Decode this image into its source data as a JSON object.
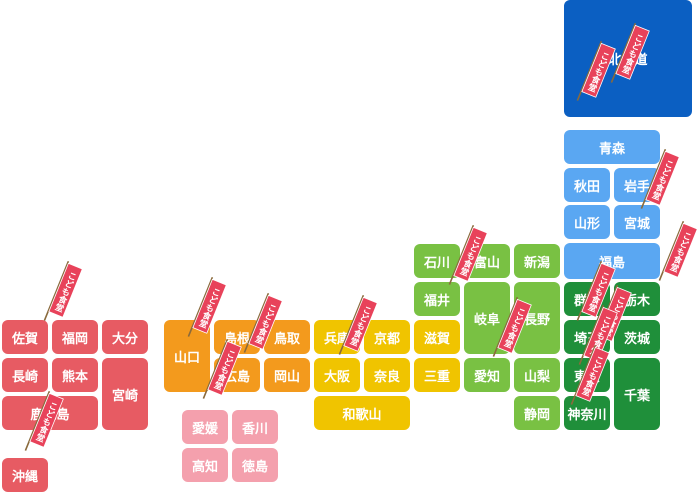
{
  "prefectures": {
    "hokkaido": "北海道",
    "aomori": "青森",
    "akita": "秋田",
    "iwate": "岩手",
    "yamagata": "山形",
    "miyagi": "宮城",
    "fukushima": "福島",
    "ishikawa": "石川",
    "toyama": "富山",
    "niigata": "新潟",
    "fukui": "福井",
    "gifu": "岐阜",
    "nagano": "長野",
    "aichi": "愛知",
    "yamanashi": "山梨",
    "shizuoka": "静岡",
    "gunma": "群馬",
    "tochigi": "栃木",
    "saitama": "埼玉",
    "ibaraki": "茨城",
    "tokyo": "東京",
    "chiba": "千葉",
    "kanagawa": "神奈川",
    "hyogo": "兵庫",
    "kyoto": "京都",
    "shiga": "滋賀",
    "osaka": "大阪",
    "nara": "奈良",
    "mie": "三重",
    "wakayama": "和歌山",
    "yamaguchi": "山口",
    "shimane": "島根",
    "tottori": "鳥取",
    "hiroshima": "広島",
    "okayama": "岡山",
    "ehime": "愛媛",
    "kagawa": "香川",
    "kochi": "高知",
    "tokushima": "徳島",
    "saga": "佐賀",
    "fukuoka": "福岡",
    "oita": "大分",
    "nagasaki": "長崎",
    "kumamoto": "熊本",
    "miyazaki": "宮崎",
    "kagoshima": "鹿児島",
    "okinawa": "沖縄"
  },
  "banner": {
    "text": "こども食堂",
    "cloth_color": "#e8425a",
    "pole_color": "#8a6a3c"
  }
}
